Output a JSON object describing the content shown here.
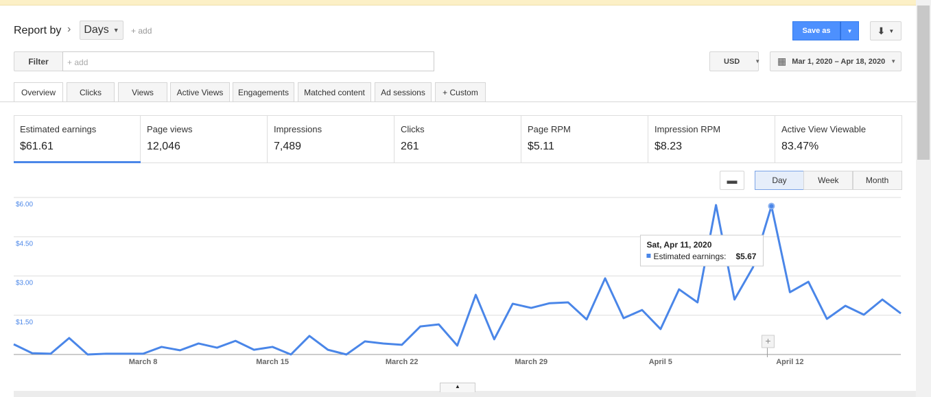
{
  "header": {
    "report_by": "Report by",
    "dimension": "Days",
    "add": "+ add",
    "save": "Save as"
  },
  "filter": {
    "label": "Filter",
    "placeholder": "+ add"
  },
  "currency": "USD",
  "date_range": "Mar 1, 2020 – Apr 18, 2020",
  "tabs": [
    "Overview",
    "Clicks",
    "Views",
    "Active Views",
    "Engagements",
    "Matched content",
    "Ad sessions",
    "+ Custom"
  ],
  "metrics": [
    {
      "label": "Estimated earnings",
      "value": "$61.61"
    },
    {
      "label": "Page views",
      "value": "12,046"
    },
    {
      "label": "Impressions",
      "value": "7,489"
    },
    {
      "label": "Clicks",
      "value": "261"
    },
    {
      "label": "Page RPM",
      "value": "$5.11"
    },
    {
      "label": "Impression RPM",
      "value": "$8.23"
    },
    {
      "label": "Active View Viewable",
      "value": "83.47%"
    }
  ],
  "granularity": [
    "Day",
    "Week",
    "Month"
  ],
  "chart_data": {
    "type": "line",
    "categories": [
      null,
      null,
      null,
      null,
      null,
      null,
      null,
      "March 8",
      null,
      null,
      null,
      null,
      null,
      null,
      "March 15",
      null,
      null,
      null,
      null,
      null,
      null,
      "March 22",
      null,
      null,
      null,
      null,
      null,
      null,
      "March 29",
      null,
      null,
      null,
      null,
      null,
      null,
      "April 5",
      null,
      null,
      null,
      null,
      null,
      null,
      "April 12",
      null,
      null,
      null,
      null,
      null,
      null
    ],
    "values": [
      0.39,
      0.05,
      0.03,
      0.63,
      0,
      0.03,
      0.03,
      0.03,
      0.29,
      0.16,
      0.42,
      0.26,
      0.52,
      0.18,
      0.29,
      0,
      0.71,
      0.18,
      0,
      0.5,
      0.42,
      0.37,
      1.07,
      1.15,
      0.34,
      2.28,
      0.58,
      1.94,
      1.78,
      1.96,
      1.99,
      1.34,
      2.91,
      1.39,
      1.7,
      0.97,
      2.49,
      1.99,
      5.71,
      2.1,
      3.33,
      5.67,
      2.38,
      2.78,
      1.36,
      1.86,
      1.52,
      2.1,
      1.57
    ],
    "color": "#4a86e8",
    "ylim": [
      0,
      6
    ],
    "yticks": [
      {
        "value": 1.5,
        "label": "$1.50"
      },
      {
        "value": 3,
        "label": "$3.00"
      },
      {
        "value": 4.5,
        "label": "$4.50"
      },
      {
        "value": 6,
        "label": "$6.00"
      }
    ],
    "grid": true,
    "tooltip": {
      "index": 41,
      "title": "Sat, Apr 11, 2020",
      "label": "Estimated earnings:",
      "value_label": "$5.67"
    }
  }
}
